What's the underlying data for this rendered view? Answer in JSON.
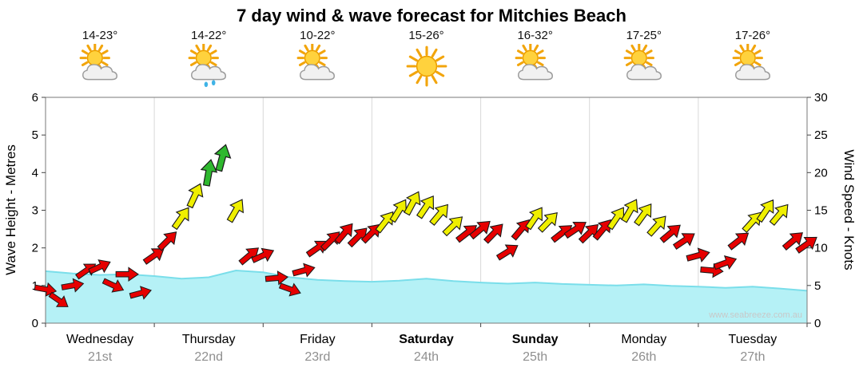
{
  "title": "7 day wind & wave forecast for Mitchies Beach",
  "watermark": "www.seabreeze.com.au",
  "days": [
    {
      "name": "Wednesday",
      "date": "21st",
      "temp": "14-23°",
      "icon": "partly-cloudy",
      "bold": false
    },
    {
      "name": "Thursday",
      "date": "22nd",
      "temp": "14-22°",
      "icon": "partly-cloudy-rain",
      "bold": false
    },
    {
      "name": "Friday",
      "date": "23rd",
      "temp": "10-22°",
      "icon": "partly-cloudy",
      "bold": false
    },
    {
      "name": "Saturday",
      "date": "24th",
      "temp": "15-26°",
      "icon": "sunny",
      "bold": true
    },
    {
      "name": "Sunday",
      "date": "25th",
      "temp": "16-32°",
      "icon": "partly-cloudy",
      "bold": true
    },
    {
      "name": "Monday",
      "date": "26th",
      "temp": "17-25°",
      "icon": "partly-cloudy",
      "bold": false
    },
    {
      "name": "Tuesday",
      "date": "27th",
      "temp": "17-26°",
      "icon": "partly-cloudy",
      "bold": false
    }
  ],
  "chart_data": {
    "type": "area+wind-vectors",
    "title": "7 day wind & wave forecast for Mitchies Beach",
    "x_axis": {
      "unit": "days",
      "range": [
        0,
        7
      ],
      "categories": [
        "Wednesday 21st",
        "Thursday 22nd",
        "Friday 23rd",
        "Saturday 24th",
        "Sunday 25th",
        "Monday 26th",
        "Tuesday 27th"
      ]
    },
    "left_axis": {
      "label": "Wave Height - Metres",
      "min": 0,
      "max": 6,
      "tick_step": 1
    },
    "right_axis": {
      "label": "Wind Speed - Knots",
      "min": 0,
      "max": 30,
      "tick_step": 5
    },
    "wave_height_m": {
      "interval_hours": 6,
      "values": [
        1.38,
        1.32,
        1.28,
        1.3,
        1.25,
        1.18,
        1.22,
        1.4,
        1.35,
        1.22,
        1.15,
        1.12,
        1.1,
        1.13,
        1.18,
        1.12,
        1.08,
        1.05,
        1.08,
        1.04,
        1.02,
        1.0,
        1.03,
        0.99,
        0.97,
        0.94,
        0.97,
        0.92,
        0.86
      ]
    },
    "wind": {
      "interval_hours": 3,
      "speeds_knots": [
        4.5,
        3,
        5,
        7,
        7.5,
        5,
        6.5,
        4,
        9,
        11,
        14,
        17,
        20,
        22,
        15,
        9,
        9,
        6,
        4.5,
        7,
        10,
        11,
        12,
        11.5,
        12,
        13.5,
        15,
        16,
        15.5,
        14.5,
        13,
        12,
        12.5,
        12,
        9.5,
        12.5,
        14,
        13.5,
        12,
        12.5,
        12,
        12.5,
        14,
        15,
        14.5,
        13,
        12,
        11,
        9,
        7,
        8,
        11,
        13.5,
        15,
        14.5,
        11,
        10.5
      ],
      "directions_deg": [
        100,
        125,
        80,
        55,
        65,
        115,
        90,
        75,
        55,
        45,
        35,
        25,
        10,
        15,
        30,
        50,
        65,
        85,
        110,
        75,
        55,
        45,
        40,
        45,
        45,
        38,
        32,
        28,
        34,
        40,
        46,
        52,
        50,
        44,
        58,
        40,
        34,
        44,
        52,
        56,
        46,
        40,
        34,
        30,
        36,
        42,
        50,
        56,
        75,
        95,
        70,
        52,
        42,
        34,
        40,
        50,
        55
      ]
    },
    "wind_speed_colors": {
      "red_max_kn": 13,
      "yellow_max_kn": 19,
      "red": "#e60000",
      "yellow": "#efef00",
      "green": "#2eb82e"
    },
    "wave_colors": {
      "fill": "#b5f1f6",
      "edge": "#7adeea"
    }
  }
}
